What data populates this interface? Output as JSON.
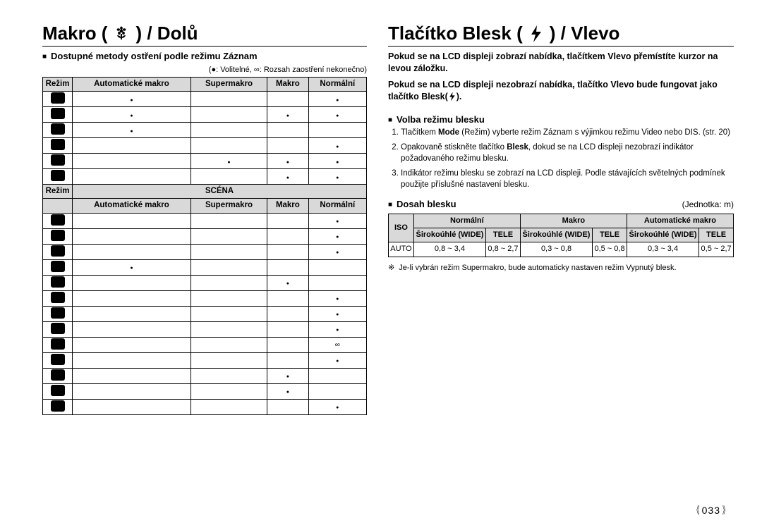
{
  "left": {
    "title_pre": "Makro (",
    "title_post": ") / Dolů",
    "subhead": "Dostupné metody ostření podle režimu Záznam",
    "legend": "(●: Volitelné, ∞: Rozsah zaostření nekonečno)",
    "headers": {
      "mode": "Režim",
      "auto": "Automatické makro",
      "super": "Supermakro",
      "macro": "Makro",
      "normal": "Normální",
      "scene": "SCÉNA"
    },
    "rows1": [
      {
        "auto": "●",
        "super": "",
        "macro": "",
        "normal": "●"
      },
      {
        "auto": "●",
        "super": "",
        "macro": "●",
        "normal": "●"
      },
      {
        "auto": "●",
        "super": "",
        "macro": "",
        "normal": ""
      },
      {
        "auto": "",
        "super": "",
        "macro": "",
        "normal": "●"
      },
      {
        "auto": "",
        "super": "●",
        "macro": "●",
        "normal": "●"
      },
      {
        "auto": "",
        "super": "",
        "macro": "●",
        "normal": "●"
      }
    ],
    "rows2": [
      {
        "auto": "",
        "super": "",
        "macro": "",
        "normal": "●"
      },
      {
        "auto": "",
        "super": "",
        "macro": "",
        "normal": "●"
      },
      {
        "auto": "",
        "super": "",
        "macro": "",
        "normal": "●"
      },
      {
        "auto": "●",
        "super": "",
        "macro": "",
        "normal": ""
      },
      {
        "auto": "",
        "super": "",
        "macro": "●",
        "normal": ""
      },
      {
        "auto": "",
        "super": "",
        "macro": "",
        "normal": "●"
      },
      {
        "auto": "",
        "super": "",
        "macro": "",
        "normal": "●"
      },
      {
        "auto": "",
        "super": "",
        "macro": "",
        "normal": "●"
      },
      {
        "auto": "",
        "super": "",
        "macro": "",
        "normal": "∞"
      },
      {
        "auto": "",
        "super": "",
        "macro": "",
        "normal": "●"
      },
      {
        "auto": "",
        "super": "",
        "macro": "●",
        "normal": ""
      },
      {
        "auto": "",
        "super": "",
        "macro": "●",
        "normal": ""
      },
      {
        "auto": "",
        "super": "",
        "macro": "",
        "normal": "●"
      }
    ]
  },
  "right": {
    "title_pre": "Tlačítko Blesk (",
    "title_post": ") / Vlevo",
    "para1": "Pokud se na LCD displeji zobrazí nabídka, tlačítkem Vlevo přemístíte kurzor na levou záložku.",
    "para2a": "Pokud se na LCD displeji nezobrazí nabídka, tlačítko Vlevo bude fungovat jako tlačítko Blesk(",
    "para2b": ").",
    "sec1_title": "Volba režimu blesku",
    "steps": {
      "s1a": "Tlačítkem ",
      "s1b": "Mode",
      "s1c": " (Režim) vyberte režim Záznam s výjimkou režimu Video nebo DIS. (str. 20)",
      "s2a": "Opakovaně stiskněte tlačítko ",
      "s2b": "Blesk",
      "s2c": ", dokud se na LCD displeji nezobrazí indikátor požadovaného režimu blesku.",
      "s3": "Indikátor režimu blesku se zobrazí na LCD displeji. Podle stávajících světelných podmínek použijte příslušné nastavení blesku."
    },
    "sec2_title": "Dosah blesku",
    "unit": "(Jednotka: m)",
    "range_head": {
      "iso": "ISO",
      "normal": "Normální",
      "macro": "Makro",
      "automacro": "Automatické makro",
      "wide": "Širokoúhlé (WIDE)",
      "tele": "TELE"
    },
    "range_row": {
      "iso": "AUTO",
      "v": [
        "0,8 ~ 3,4",
        "0,8 ~ 2,7",
        "0,3 ~ 0,8",
        "0,5 ~ 0,8",
        "0,3 ~ 3,4",
        "0,5 ~ 2,7"
      ]
    },
    "footnote": "Je-li vybrán režim Supermakro, bude automaticky nastaven režim Vypnutý blesk."
  },
  "pagenum": "033"
}
